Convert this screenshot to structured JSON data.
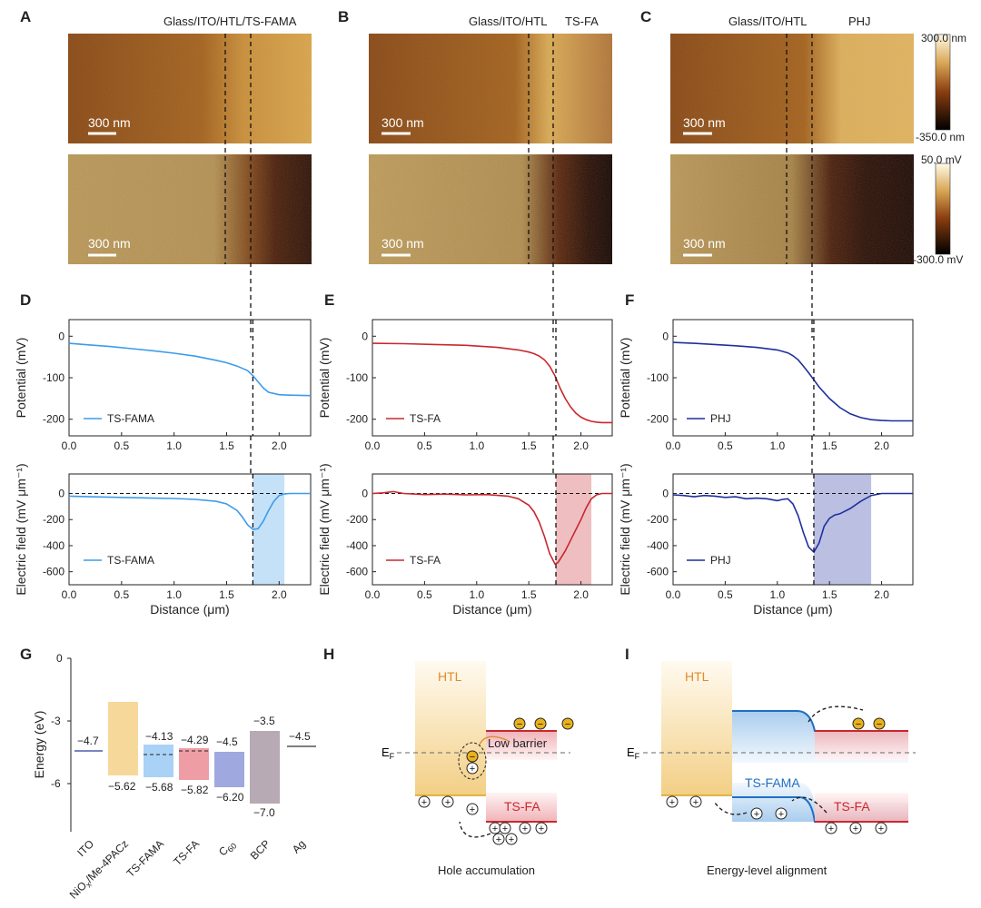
{
  "panel_letters": [
    "A",
    "B",
    "C",
    "D",
    "E",
    "F",
    "G",
    "H",
    "I"
  ],
  "top_titles": {
    "A": "Glass/ITO/HTL/TS-FAMA",
    "B_left": "Glass/ITO/HTL",
    "B_right": "TS-FA",
    "C_left": "Glass/ITO/HTL",
    "C_right": "PHJ"
  },
  "scale_bar": "300 nm",
  "colorbars": {
    "height": {
      "max": "300.0 nm",
      "min": "-350.0 nm"
    },
    "potential": {
      "max": "50.0 mV",
      "min": "-300.0 mV"
    }
  },
  "colors": {
    "fama": "#3d9be9",
    "fa": "#c8282e",
    "phj": "#1f2f9e",
    "fama_band": "#bcdcf7",
    "fa_band": "#eeb2b8",
    "phj_band": "#b4bce2",
    "htl": "#f3cf85",
    "gold": "#d9a21a"
  },
  "axes": {
    "potential_ylabel": "Potential (mV)",
    "field_ylabel": "Electric field (mV μm⁻¹)",
    "xlabel": "Distance (μm)",
    "energy_ylabel": "Energy (eV)"
  },
  "chart_data": [
    {
      "type": "line",
      "panel": "D",
      "title": "",
      "xlabel": "",
      "ylabel": "Potential (mV)",
      "xlim": [
        0,
        2.3
      ],
      "ylim": [
        -240,
        40
      ],
      "xticks": [
        0.0,
        0.5,
        1.0,
        1.5,
        2.0
      ],
      "yticks": [
        0,
        -100,
        -200
      ],
      "series": [
        {
          "name": "TS-FAMA",
          "color": "#3d9be9",
          "x": [
            0,
            0.2,
            0.4,
            0.6,
            0.8,
            1.0,
            1.2,
            1.4,
            1.5,
            1.6,
            1.7,
            1.75,
            1.8,
            1.85,
            1.9,
            2.0,
            2.1,
            2.3
          ],
          "y": [
            -17,
            -21,
            -25,
            -30,
            -35,
            -41,
            -48,
            -58,
            -64,
            -72,
            -83,
            -95,
            -110,
            -125,
            -135,
            -141,
            -142,
            -143
          ]
        }
      ],
      "vline": 1.75
    },
    {
      "type": "line",
      "panel": "D2",
      "title": "",
      "xlabel": "Distance (μm)",
      "ylabel": "Electric field (mV μm⁻¹)",
      "xlim": [
        0,
        2.3
      ],
      "ylim": [
        -700,
        150
      ],
      "xticks": [
        0.0,
        0.5,
        1.0,
        1.5,
        2.0
      ],
      "yticks": [
        0,
        -200,
        -400,
        -600
      ],
      "series": [
        {
          "name": "TS-FAMA",
          "color": "#3d9be9",
          "x": [
            0,
            0.2,
            0.5,
            0.8,
            1.0,
            1.2,
            1.4,
            1.5,
            1.6,
            1.65,
            1.7,
            1.75,
            1.8,
            1.85,
            1.9,
            1.95,
            2.0,
            2.05,
            2.1,
            2.3
          ],
          "y": [
            -20,
            -25,
            -30,
            -35,
            -38,
            -45,
            -60,
            -80,
            -130,
            -180,
            -240,
            -275,
            -270,
            -210,
            -130,
            -60,
            -15,
            -3,
            0,
            0
          ]
        }
      ],
      "band": [
        1.75,
        2.05
      ],
      "hline": 0,
      "vline": 1.75
    },
    {
      "type": "line",
      "panel": "E",
      "title": "",
      "xlabel": "",
      "ylabel": "Potential (mV)",
      "xlim": [
        0,
        2.3
      ],
      "ylim": [
        -240,
        40
      ],
      "xticks": [
        0.0,
        0.5,
        1.0,
        1.5,
        2.0
      ],
      "yticks": [
        0,
        -100,
        -200
      ],
      "series": [
        {
          "name": "TS-FA",
          "color": "#c8282e",
          "x": [
            0,
            0.3,
            0.6,
            0.9,
            1.2,
            1.4,
            1.5,
            1.55,
            1.6,
            1.65,
            1.7,
            1.75,
            1.8,
            1.85,
            1.9,
            1.95,
            2.0,
            2.05,
            2.1,
            2.15,
            2.2,
            2.3
          ],
          "y": [
            -17,
            -18,
            -20,
            -22,
            -27,
            -33,
            -38,
            -42,
            -48,
            -57,
            -72,
            -95,
            -125,
            -150,
            -170,
            -185,
            -195,
            -201,
            -205,
            -207,
            -208,
            -208
          ]
        }
      ],
      "vline": 1.76
    },
    {
      "type": "line",
      "panel": "E2",
      "title": "",
      "xlabel": "Distance (μm)",
      "ylabel": "Electric field (mV μm⁻¹)",
      "xlim": [
        0,
        2.3
      ],
      "ylim": [
        -700,
        150
      ],
      "xticks": [
        0.0,
        0.5,
        1.0,
        1.5,
        2.0
      ],
      "yticks": [
        0,
        -200,
        -400,
        -600
      ],
      "series": [
        {
          "name": "TS-FA",
          "color": "#c8282e",
          "x": [
            0,
            0.1,
            0.2,
            0.3,
            0.5,
            0.7,
            0.9,
            1.1,
            1.3,
            1.4,
            1.5,
            1.55,
            1.6,
            1.65,
            1.7,
            1.75,
            1.78,
            1.85,
            1.9,
            1.95,
            2.0,
            2.05,
            2.1,
            2.15,
            2.2,
            2.3
          ],
          "y": [
            0,
            5,
            15,
            0,
            -8,
            -5,
            -10,
            -8,
            -20,
            -40,
            -90,
            -140,
            -220,
            -330,
            -460,
            -540,
            -530,
            -440,
            -360,
            -280,
            -200,
            -110,
            -40,
            -10,
            0,
            0
          ]
        }
      ],
      "band": [
        1.76,
        2.1
      ],
      "hline": 0,
      "vline": 1.76
    },
    {
      "type": "line",
      "panel": "F",
      "title": "",
      "xlabel": "",
      "ylabel": "Potential (mV)",
      "xlim": [
        0,
        2.3
      ],
      "ylim": [
        -240,
        40
      ],
      "xticks": [
        0.0,
        0.5,
        1.0,
        1.5,
        2.0
      ],
      "yticks": [
        0,
        -100,
        -200
      ],
      "series": [
        {
          "name": "PHJ",
          "color": "#1f2f9e",
          "x": [
            0,
            0.2,
            0.4,
            0.6,
            0.8,
            1.0,
            1.1,
            1.15,
            1.2,
            1.25,
            1.3,
            1.35,
            1.4,
            1.5,
            1.6,
            1.7,
            1.8,
            1.9,
            2.0,
            2.1,
            2.3
          ],
          "y": [
            -15,
            -17,
            -20,
            -23,
            -27,
            -33,
            -40,
            -47,
            -57,
            -72,
            -88,
            -105,
            -122,
            -150,
            -172,
            -187,
            -196,
            -201,
            -203,
            -204,
            -204
          ]
        }
      ],
      "vline": 1.35
    },
    {
      "type": "line",
      "panel": "F2",
      "title": "",
      "xlabel": "Distance (μm)",
      "ylabel": "Electric field (mV μm⁻¹)",
      "xlim": [
        0,
        2.3
      ],
      "ylim": [
        -700,
        150
      ],
      "xticks": [
        0.0,
        0.5,
        1.0,
        1.5,
        2.0
      ],
      "yticks": [
        0,
        -200,
        -400,
        -600
      ],
      "series": [
        {
          "name": "PHJ",
          "color": "#1f2f9e",
          "x": [
            0,
            0.1,
            0.2,
            0.3,
            0.4,
            0.5,
            0.6,
            0.7,
            0.8,
            0.9,
            1.0,
            1.05,
            1.1,
            1.15,
            1.2,
            1.25,
            1.3,
            1.35,
            1.4,
            1.45,
            1.5,
            1.55,
            1.6,
            1.7,
            1.8,
            1.9,
            2.0,
            2.3
          ],
          "y": [
            -10,
            -15,
            -25,
            -15,
            -20,
            -30,
            -25,
            -40,
            -35,
            -40,
            -55,
            -45,
            -40,
            -80,
            -170,
            -300,
            -410,
            -450,
            -380,
            -250,
            -190,
            -165,
            -155,
            -115,
            -60,
            -15,
            0,
            0
          ]
        }
      ],
      "band": [
        1.35,
        1.9
      ],
      "hline": 0,
      "vline": 1.35
    },
    {
      "type": "bar",
      "panel": "G",
      "title": "",
      "xlabel": "",
      "ylabel": "Energy (eV)",
      "ylim": [
        -8.3,
        0
      ],
      "yticks": [
        0,
        -3,
        -6
      ],
      "categories": [
        "ITO",
        "NiOx/Me-4PACz",
        "TS-FAMA",
        "TS-FA",
        "C60",
        "BCP",
        "Ag"
      ],
      "levels": [
        {
          "category": "ITO",
          "type": "line",
          "value": -4.7,
          "label": "−4.7"
        },
        {
          "category": "NiOx/Me-4PACz",
          "type": "bar",
          "top": -2.1,
          "bottom": -5.62,
          "label_bottom": "−5.62"
        },
        {
          "category": "TS-FAMA",
          "type": "bar",
          "top": -4.13,
          "bottom": -5.68,
          "fermi": -4.9,
          "label_top": "−4.13",
          "label_bottom": "−5.68"
        },
        {
          "category": "TS-FA",
          "type": "bar",
          "top": -4.29,
          "bottom": -5.82,
          "fermi": -4.75,
          "label_top": "−4.29",
          "label_bottom": "−5.82"
        },
        {
          "category": "C60",
          "type": "bar",
          "top": -4.5,
          "bottom": -6.2,
          "label_top": "−4.5",
          "label_bottom": "−6.20"
        },
        {
          "category": "BCP",
          "type": "bar",
          "top": -3.5,
          "bottom": -7.0,
          "label_top": "−3.5",
          "label_bottom": "−7.0"
        },
        {
          "category": "Ag",
          "type": "line",
          "value": -4.5,
          "label": "−4.5"
        }
      ]
    }
  ],
  "G_texts": {
    "y0": "0",
    "y3": "-3",
    "y6": "-6",
    "c_ito": "ITO",
    "c_nio_a": "NiO",
    "c_nio_sub": "x",
    "c_nio_b": "/Me-4PACz",
    "c_fama": "TS-FAMA",
    "c_fa": "TS-FA",
    "c_c60": "C",
    "c_c60_sub": "60",
    "c_bcp": "BCP",
    "c_ag": "Ag",
    "l_ito": "−4.7",
    "l_nio": "−5.62",
    "l_fama_t": "−4.13",
    "l_fama_b": "−5.68",
    "l_fa_t": "−4.29",
    "l_fa_b": "−5.82",
    "l_c60_t": "−4.5",
    "l_c60_b": "−6.20",
    "l_bcp_t": "−3.5",
    "l_bcp_b": "−7.0",
    "l_ag": "−4.5"
  },
  "H_texts": {
    "htl": "HTL",
    "ef": "E",
    "ef_sub": "F",
    "barrier": "Low barrier",
    "tsfa": "TS-FA",
    "caption": "Hole accumulation",
    "minus": "−",
    "plus": "+"
  },
  "I_texts": {
    "htl": "HTL",
    "ef": "E",
    "ef_sub": "F",
    "tsfama": "TS-FAMA",
    "tsfa": "TS-FA",
    "caption": "Energy-level alignment",
    "minus": "−",
    "plus": "+"
  }
}
